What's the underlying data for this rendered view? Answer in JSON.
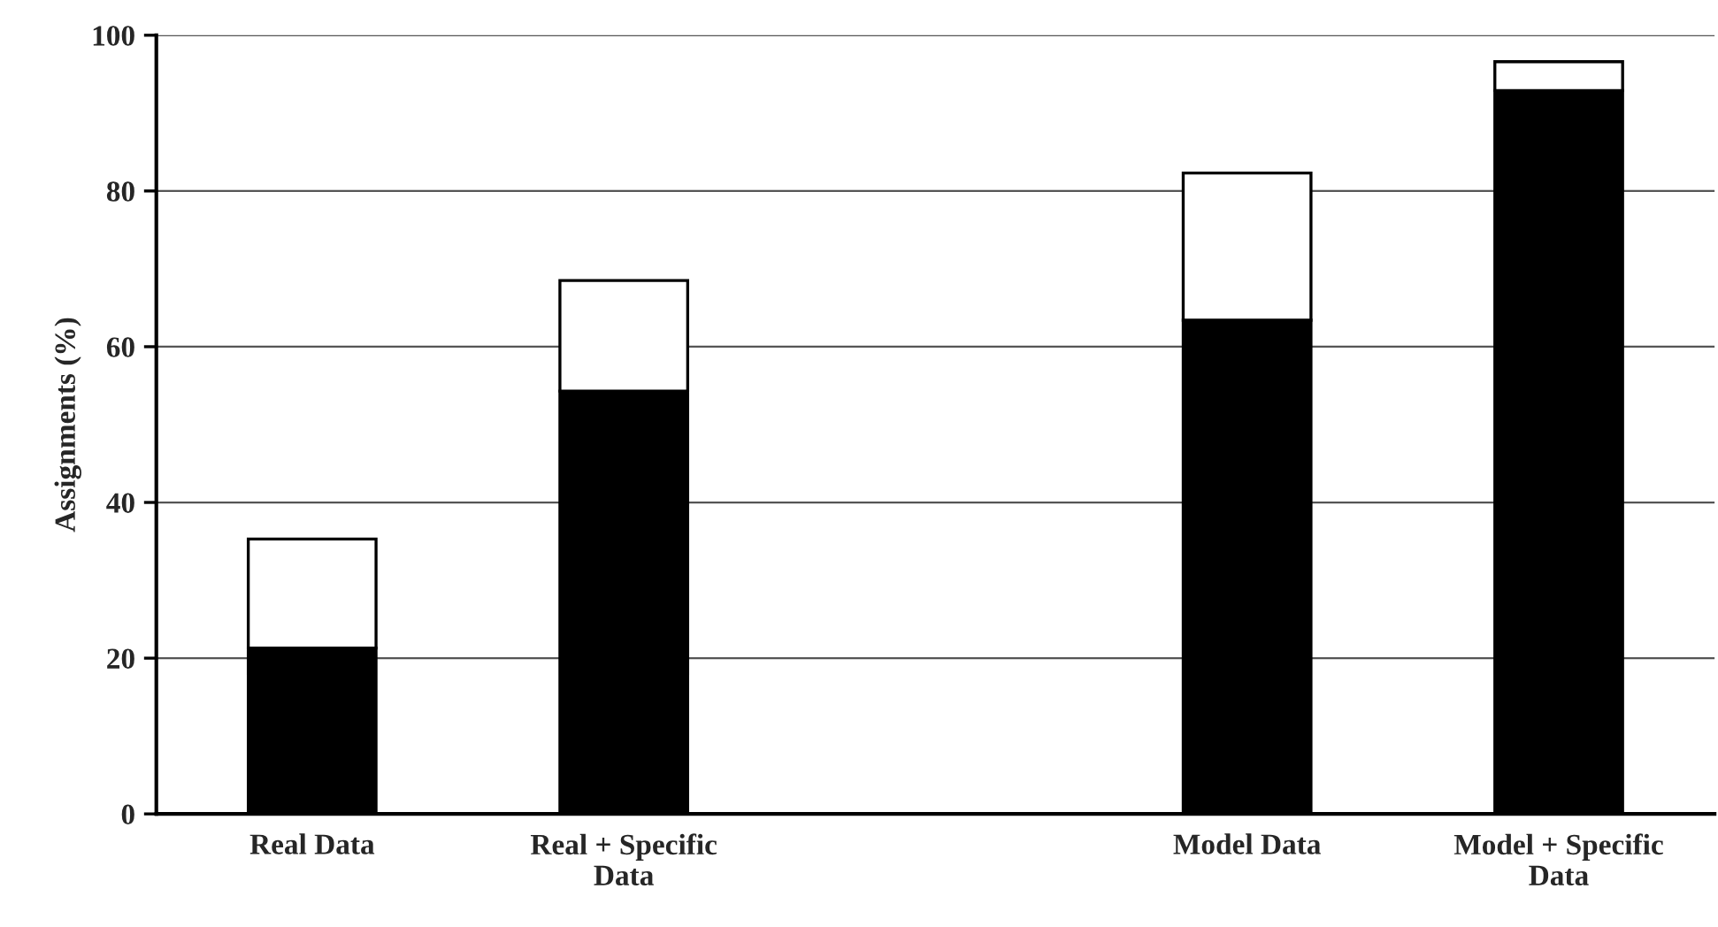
{
  "chart_data": {
    "type": "bar",
    "stacked": true,
    "ylabel": "Assignments (%)",
    "categories": [
      "Real Data",
      "Real + Specific Data",
      null,
      "Model Data",
      "Model + Specific Data"
    ],
    "series": [
      {
        "color": "#000000",
        "values": [
          21.3,
          54.3,
          null,
          63.4,
          92.9
        ]
      },
      {
        "color": "#ffffff",
        "values": [
          14.0,
          14.2,
          null,
          18.9,
          3.7
        ]
      }
    ],
    "ylim": [
      0,
      100
    ],
    "yticks": [
      0,
      20,
      40,
      60,
      80,
      100
    ],
    "grid": "y",
    "legend": false
  }
}
